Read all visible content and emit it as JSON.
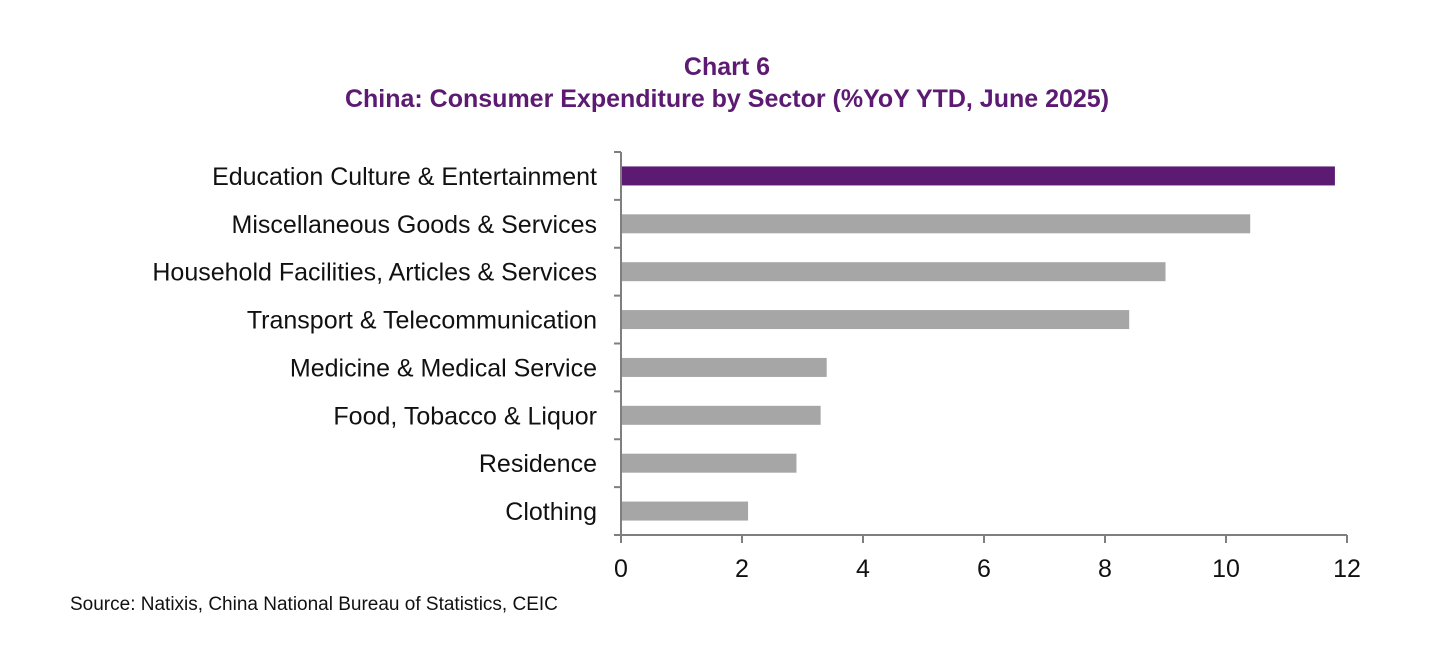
{
  "chart_data": {
    "type": "bar",
    "orientation": "horizontal",
    "title": "Chart 6",
    "subtitle": "China: Consumer Expenditure by Sector (%YoY YTD, June 2025)",
    "categories": [
      "Education Culture & Entertainment",
      "Miscellaneous Goods & Services",
      "Household Facilities, Articles & Services",
      "Transport & Telecommunication",
      "Medicine & Medical Service",
      "Food, Tobacco & Liquor",
      "Residence",
      "Clothing"
    ],
    "values": [
      11.8,
      10.4,
      9.0,
      8.4,
      3.4,
      3.3,
      2.9,
      2.1
    ],
    "highlight_index": 0,
    "xlim": [
      0,
      12
    ],
    "xticks": [
      "0",
      "2",
      "4",
      "6",
      "8",
      "10",
      "12"
    ],
    "grid": false,
    "legend": "none",
    "source": "Source: Natixis, China National Bureau of Statistics, CEIC"
  },
  "colors": {
    "title": "#5c1a72",
    "highlight_bar": "#5c1a72",
    "bar": "#a6a6a6",
    "axis": "#7f7f7f",
    "text": "#111111"
  }
}
